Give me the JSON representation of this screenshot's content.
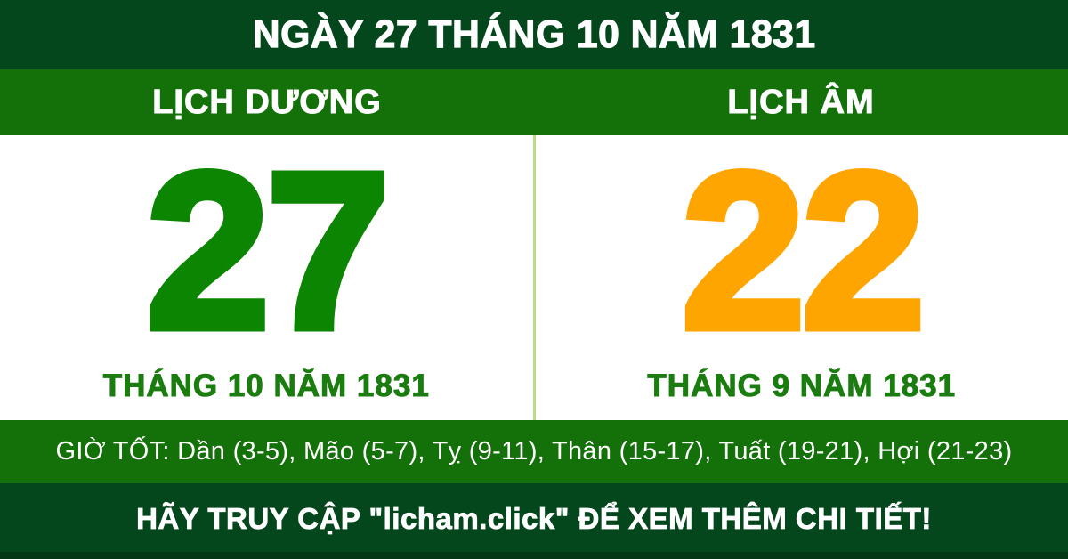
{
  "header": {
    "title": "NGÀY 27 THÁNG 10 NĂM 1831"
  },
  "calendar": {
    "solar": {
      "label": "LỊCH DƯƠNG",
      "day": "27",
      "month_year": "THÁNG 10 NĂM 1831"
    },
    "lunar": {
      "label": "LỊCH ÂM",
      "day": "22",
      "month_year": "THÁNG 9 NĂM 1831"
    }
  },
  "good_hours": {
    "text": "GIỜ TỐT: Dần (3-5), Mão (5-7), Tỵ (9-11), Thân (15-17), Tuất (19-21), Hợi (21-23)"
  },
  "footer": {
    "message": "HÃY TRUY CẬP \"licham.click\" ĐỂ XEM THÊM CHI TIẾT!",
    "site": "licham.click"
  },
  "colors": {
    "dark_green": "#05471d",
    "band_green": "#147009",
    "solar_day_green": "#0b8502",
    "lunar_day_orange": "#ffa502",
    "month_text_green": "#1b7c10",
    "divider_light_green": "#b9dd85",
    "text_white": "#ffffff"
  }
}
